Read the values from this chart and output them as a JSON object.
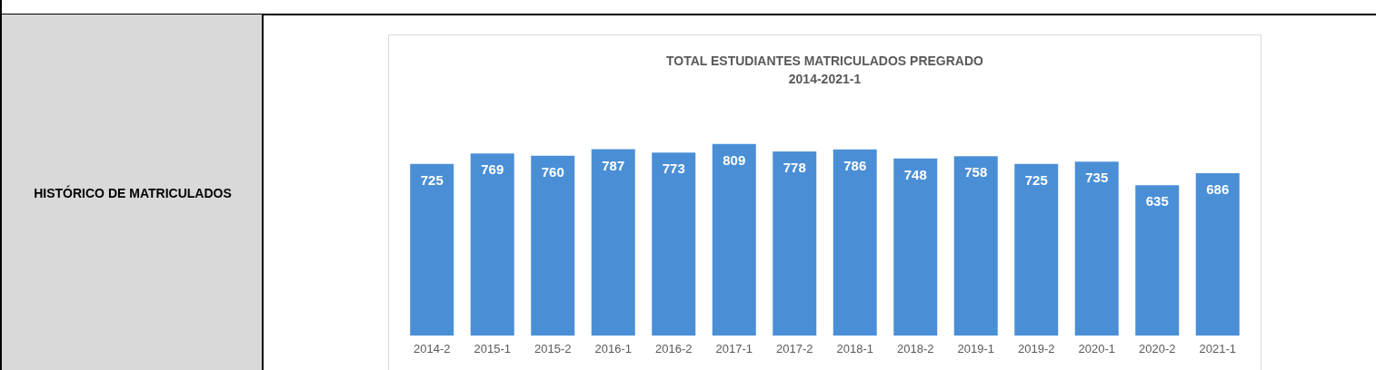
{
  "chart_data": {
    "type": "bar",
    "title": "TOTAL ESTUDIANTES MATRICULADOS PREGRADO",
    "subtitle": "2014-2021-1",
    "categories": [
      "2014-2",
      "2015-1",
      "2015-2",
      "2016-1",
      "2016-2",
      "2017-1",
      "2017-2",
      "2018-1",
      "2018-2",
      "2019-1",
      "2019-2",
      "2020-1",
      "2020-2",
      "2021-1"
    ],
    "values": [
      725,
      769,
      760,
      787,
      773,
      809,
      778,
      786,
      748,
      758,
      725,
      735,
      635,
      686
    ],
    "color": "#4a8fd6",
    "data_labels": true,
    "annotations": [
      "HISTÓRICO DE MATRICULADOS"
    ]
  }
}
